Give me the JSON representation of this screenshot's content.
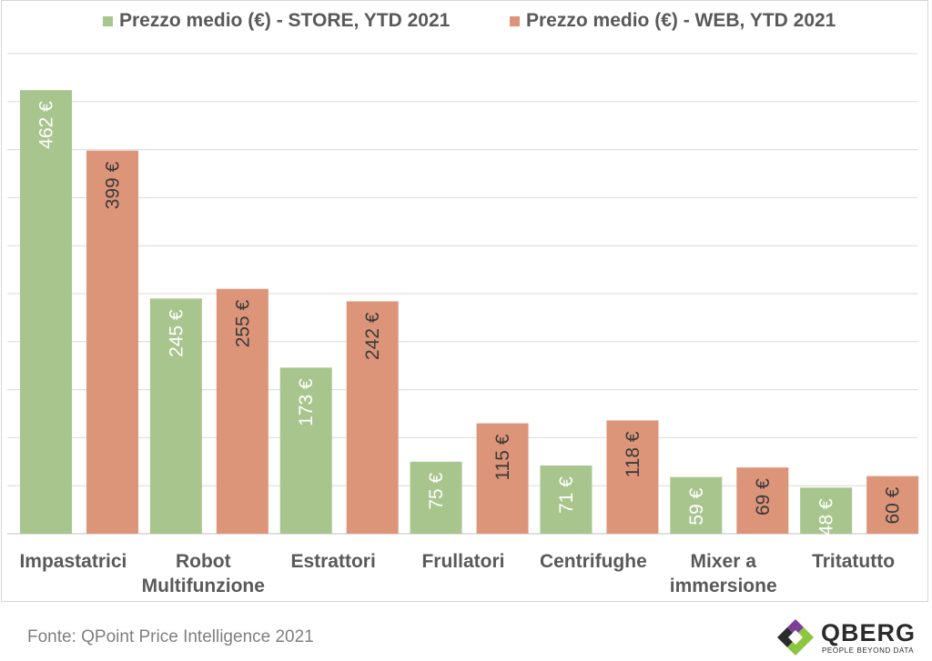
{
  "chart_data": {
    "type": "bar",
    "categories": [
      "Impastatrici",
      "Robot Multifunzione",
      "Estrattori",
      "Frullatori",
      "Centrifughe",
      "Mixer a immersione",
      "Tritatutto"
    ],
    "category_lines": [
      [
        "Impastatrici"
      ],
      [
        "Robot",
        "Multifunzione"
      ],
      [
        "Estrattori"
      ],
      [
        "Frullatori"
      ],
      [
        "Centrifughe"
      ],
      [
        "Mixer a",
        "immersione"
      ],
      [
        "Tritatutto"
      ]
    ],
    "series": [
      {
        "name": "Prezzo medio (€) - STORE, YTD 2021",
        "color": "#a9c58e",
        "label_color": "#ffffff",
        "values": [
          462,
          245,
          173,
          75,
          71,
          59,
          48
        ]
      },
      {
        "name": "Prezzo medio (€) - WEB, YTD 2021",
        "color": "#dd9579",
        "label_color": "#3a3a3a",
        "values": [
          399,
          255,
          242,
          115,
          118,
          69,
          60
        ]
      }
    ],
    "value_suffix": " €",
    "ylim": [
      0,
      500
    ],
    "grid": true,
    "legend": "top-center",
    "gridline_color": "#d9d9d9"
  },
  "source_text": "Fonte: QPoint Price Intelligence 2021",
  "logo": {
    "name": "QBERG",
    "tagline": "PEOPLE BEYOND DATA",
    "icon": "qberg-diamond-logo"
  }
}
